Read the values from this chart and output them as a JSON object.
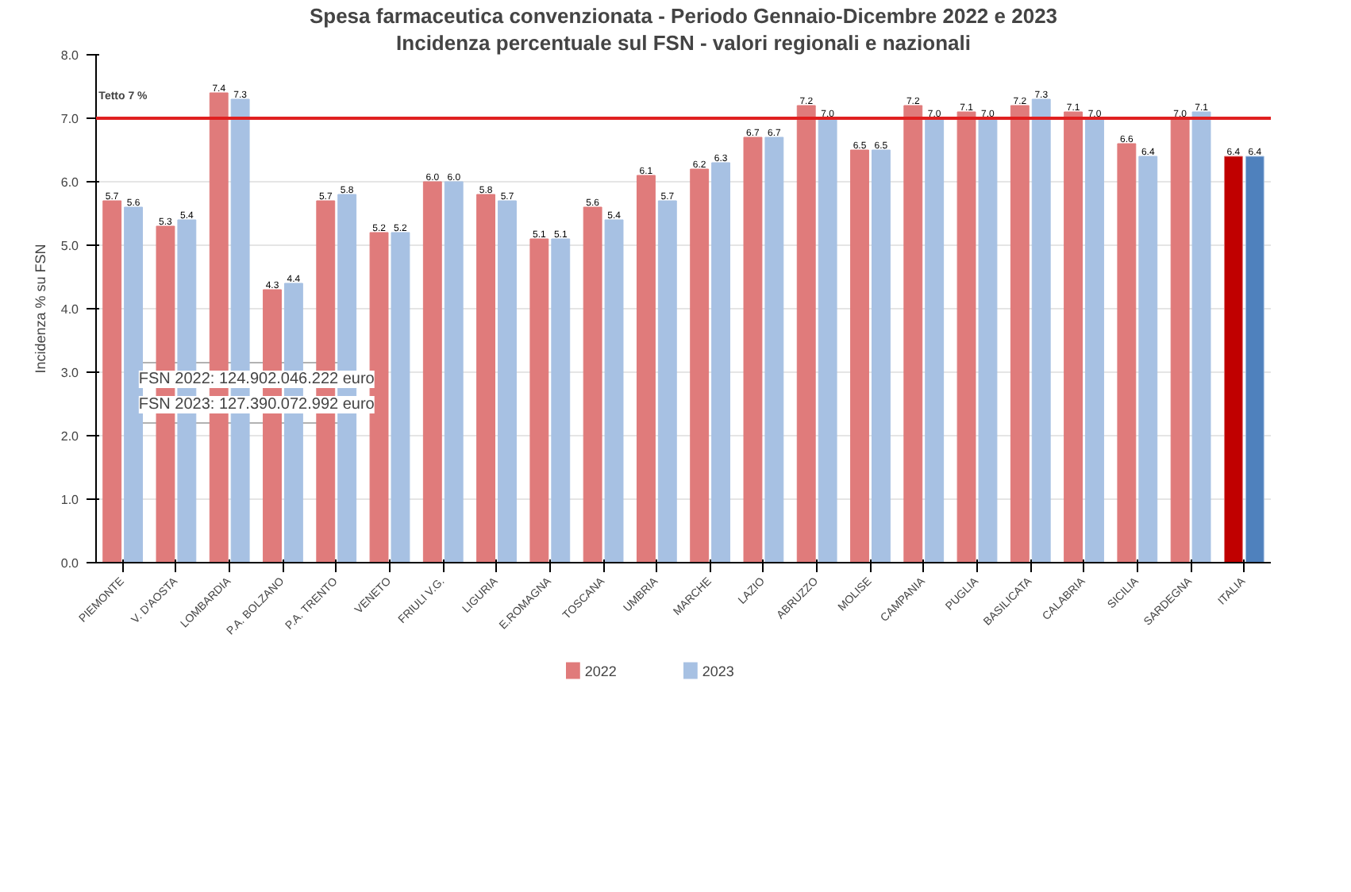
{
  "chart_data": {
    "type": "bar",
    "title": "Spesa farmaceutica convenzionata - Periodo Gennaio-Dicembre 2022 e 2023",
    "subtitle": "Incidenza percentuale sul FSN - valori regionali e nazionali",
    "ylabel": "Incidenza % su FSN",
    "categories": [
      "PIEMONTE",
      "V. D'AOSTA",
      "LOMBARDIA",
      "P.A. BOLZANO",
      "P.A. TRENTO",
      "VENETO",
      "FRIULI V.G.",
      "LIGURIA",
      "E.ROMAGNA",
      "TOSCANA",
      "UMBRIA",
      "MARCHE",
      "LAZIO",
      "ABRUZZO",
      "MOLISE",
      "CAMPANIA",
      "PUGLIA",
      "BASILICATA",
      "CALABRIA",
      "SICILIA",
      "SARDEGNA",
      "ITALIA"
    ],
    "series": [
      {
        "name": "2022",
        "color": "#e07b7b",
        "colors": [
          "#e07b7b",
          "#e07b7b",
          "#e07b7b",
          "#e07b7b",
          "#e07b7b",
          "#e07b7b",
          "#e07b7b",
          "#e07b7b",
          "#e07b7b",
          "#e07b7b",
          "#e07b7b",
          "#e07b7b",
          "#e07b7b",
          "#e07b7b",
          "#e07b7b",
          "#e07b7b",
          "#e07b7b",
          "#e07b7b",
          "#e07b7b",
          "#e07b7b",
          "#e07b7b",
          "#c00000"
        ],
        "values": [
          5.7,
          5.3,
          7.4,
          4.3,
          5.7,
          5.2,
          6.0,
          5.8,
          5.1,
          5.6,
          6.1,
          6.2,
          6.7,
          7.2,
          6.5,
          7.2,
          7.1,
          7.2,
          7.1,
          6.6,
          7.0,
          6.4
        ],
        "value_labels": [
          "5.7",
          "5.3",
          "7.4",
          "4.3",
          "5.7",
          "5.2",
          "6.0",
          "5.8",
          "5.1",
          "5.6",
          "6.1",
          "6.2",
          "6.7",
          "7.2",
          "6.5",
          "7.2",
          "7.1",
          "7.2",
          "7.1",
          "6.6",
          "7.0",
          "6.4"
        ]
      },
      {
        "name": "2023",
        "color": "#a7c1e3",
        "colors": [
          "#a7c1e3",
          "#a7c1e3",
          "#a7c1e3",
          "#a7c1e3",
          "#a7c1e3",
          "#a7c1e3",
          "#a7c1e3",
          "#a7c1e3",
          "#a7c1e3",
          "#a7c1e3",
          "#a7c1e3",
          "#a7c1e3",
          "#a7c1e3",
          "#a7c1e3",
          "#a7c1e3",
          "#a7c1e3",
          "#a7c1e3",
          "#a7c1e3",
          "#a7c1e3",
          "#a7c1e3",
          "#a7c1e3",
          "#4f81bd"
        ],
        "values": [
          5.6,
          5.4,
          7.3,
          4.4,
          5.8,
          5.2,
          6.0,
          5.7,
          5.1,
          5.4,
          5.7,
          6.3,
          6.7,
          7.0,
          6.5,
          7.0,
          7.0,
          7.3,
          7.0,
          6.4,
          7.1,
          6.4
        ],
        "value_labels": [
          "5.6",
          "5.4",
          "7.3",
          "4.4",
          "5.8",
          "5.2",
          "6.0",
          "5.7",
          "5.1",
          "5.4",
          "5.7",
          "6.3",
          "6.7",
          "7.0",
          "6.5",
          "7.0",
          "7.0",
          "7.3",
          "7.0",
          "6.4",
          "7.1",
          "6.4"
        ]
      }
    ],
    "ylim": [
      0,
      8
    ],
    "yticks": [
      {
        "value": 0,
        "label": "0.0"
      },
      {
        "value": 1,
        "label": "1.0"
      },
      {
        "value": 2,
        "label": "2.0"
      },
      {
        "value": 3,
        "label": "3.0"
      },
      {
        "value": 4,
        "label": "4.0"
      },
      {
        "value": 5,
        "label": "5.0"
      },
      {
        "value": 6,
        "label": "6.0"
      },
      {
        "value": 7,
        "label": "7.0"
      },
      {
        "value": 8,
        "label": "8.0"
      }
    ],
    "ref_lines": [
      {
        "axis": "y",
        "value": 7,
        "label": "Tetto 7 %",
        "color": "#e02020"
      }
    ],
    "annotations": [
      "FSN 2022: 124.902.046.222 euro",
      "FSN 2023: 127.390.072.992 euro"
    ],
    "data_labels": true,
    "grid": "y",
    "legend": "bottom"
  }
}
